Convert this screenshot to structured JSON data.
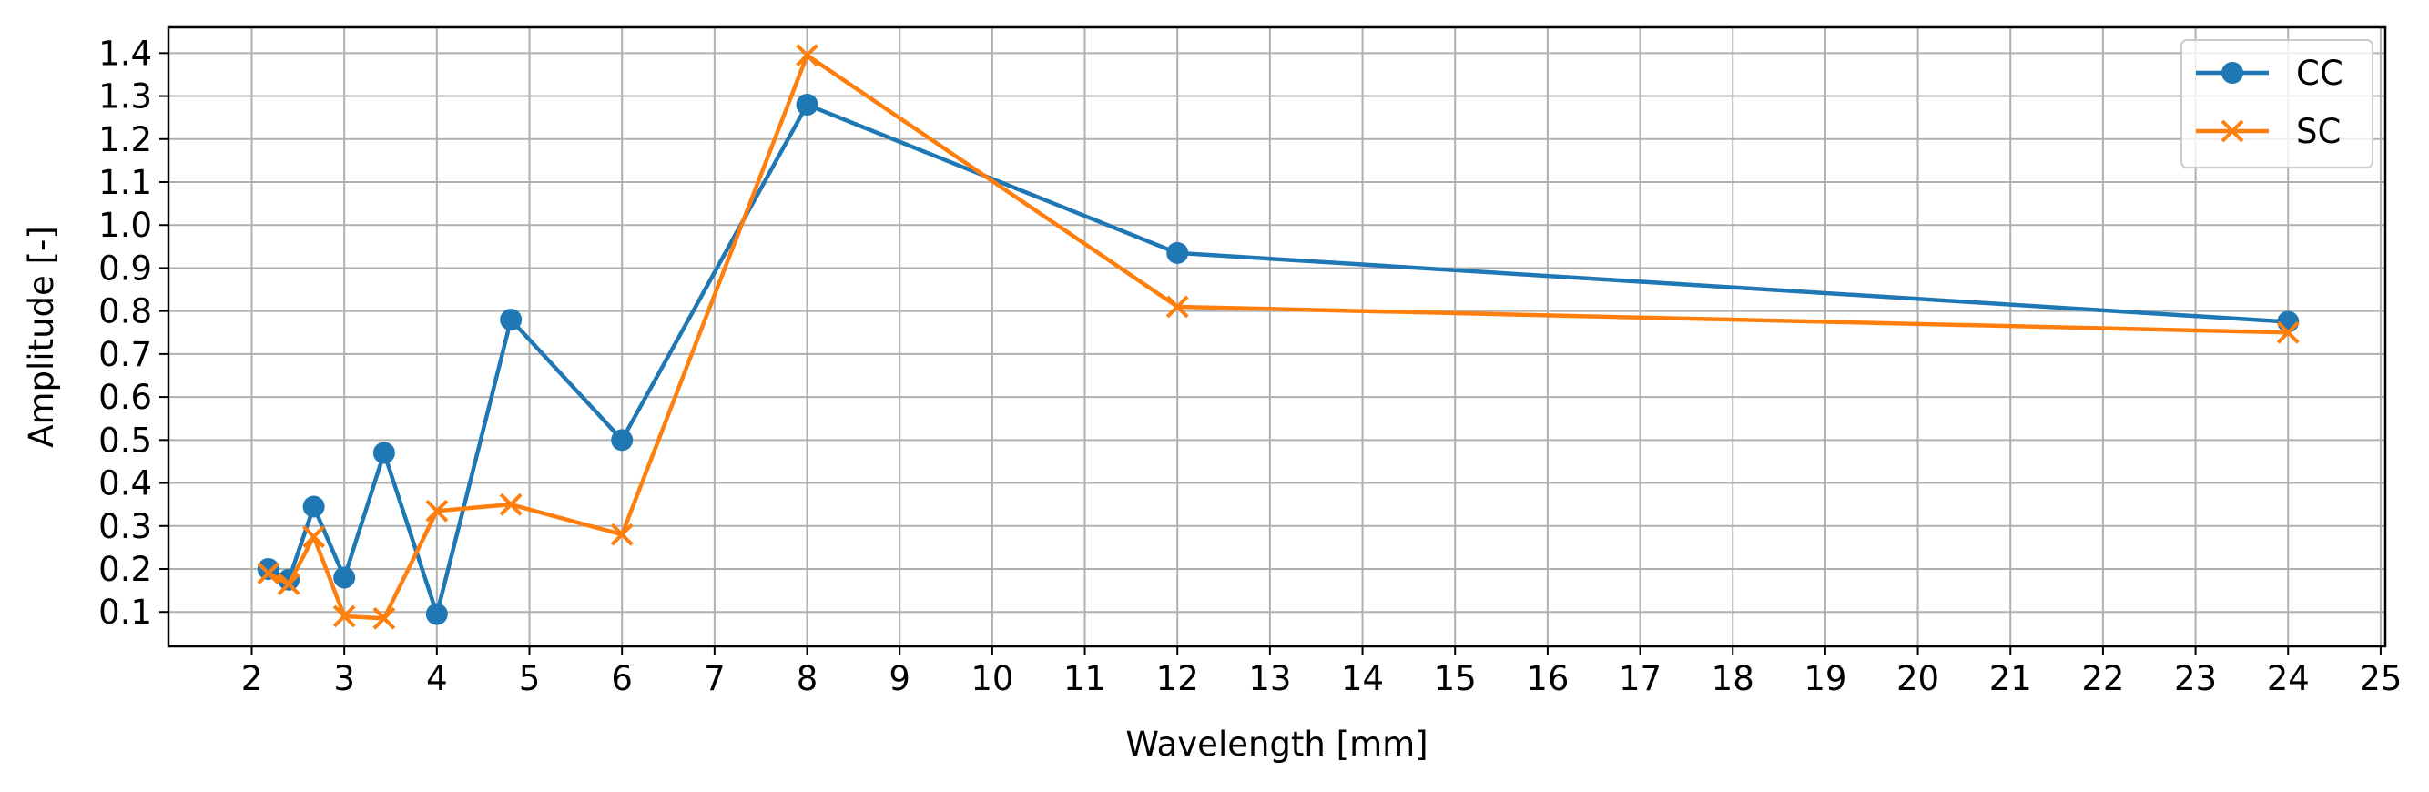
{
  "chart_data": {
    "type": "line",
    "title": "",
    "xlabel": "Wavelength [mm]",
    "ylabel": "Amplitude [-]",
    "xlim": [
      1.1,
      25.05
    ],
    "ylim": [
      0.02,
      1.46
    ],
    "x_ticks": [
      "2",
      "3",
      "4",
      "5",
      "6",
      "7",
      "8",
      "9",
      "10",
      "11",
      "12",
      "13",
      "14",
      "15",
      "16",
      "17",
      "18",
      "19",
      "20",
      "21",
      "22",
      "23",
      "24",
      "25"
    ],
    "y_ticks": [
      "0.1",
      "0.2",
      "0.3",
      "0.4",
      "0.5",
      "0.6",
      "0.7",
      "0.8",
      "0.9",
      "1.0",
      "1.1",
      "1.2",
      "1.3",
      "1.4"
    ],
    "grid": true,
    "legend_position": "top-right",
    "series": [
      {
        "name": "CC",
        "color": "#1f77b4",
        "marker": "circle",
        "x": [
          2.18,
          2.4,
          2.67,
          3.0,
          3.43,
          4.0,
          4.8,
          6.0,
          8.0,
          12.0,
          24.0
        ],
        "y": [
          0.2,
          0.175,
          0.345,
          0.18,
          0.47,
          0.095,
          0.78,
          0.5,
          1.28,
          0.935,
          0.775
        ]
      },
      {
        "name": "SC",
        "color": "#ff7f0e",
        "marker": "x",
        "x": [
          2.18,
          2.4,
          2.67,
          3.0,
          3.43,
          4.0,
          4.8,
          6.0,
          8.0,
          12.0,
          24.0
        ],
        "y": [
          0.19,
          0.165,
          0.275,
          0.09,
          0.085,
          0.335,
          0.35,
          0.28,
          1.395,
          0.81,
          0.75
        ]
      }
    ]
  }
}
